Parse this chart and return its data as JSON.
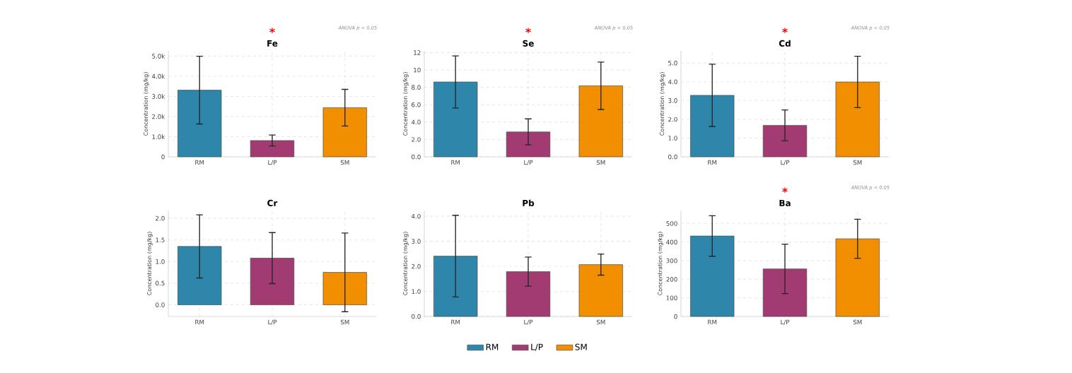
{
  "chart_data": [
    {
      "type": "bar",
      "title": "Fe",
      "ylabel": "Concentration (mg/kg)",
      "categories": [
        "RM",
        "L/P",
        "SM"
      ],
      "values": [
        3310,
        810,
        2440
      ],
      "colors": [
        "#2e86ab",
        "#a23b72",
        "#f18f01"
      ],
      "errors": [
        1680,
        270,
        910
      ],
      "ylim": [
        0,
        5260
      ],
      "yticks": [
        0,
        {
          "value": 1000,
          "label": "1.0k"
        },
        {
          "value": 2000,
          "label": "2.0k"
        },
        {
          "value": 3000,
          "label": "3.0k"
        },
        {
          "value": 4000,
          "label": "4.0k"
        },
        {
          "value": 5000,
          "label": "5.0k"
        }
      ],
      "grid": true,
      "annotations": [
        "*",
        "ANOVA p < 0.05"
      ]
    },
    {
      "type": "bar",
      "title": "Se",
      "ylabel": "Concentration (mg/kg)",
      "categories": [
        "RM",
        "L/P",
        "SM"
      ],
      "values": [
        8.62,
        2.87,
        8.18
      ],
      "colors": [
        "#2e86ab",
        "#a23b72",
        "#f18f01"
      ],
      "errors": [
        3.0,
        1.5,
        2.73
      ],
      "ylim": [
        0,
        12.2
      ],
      "yticks": [
        {
          "value": 0,
          "label": "0.0"
        },
        {
          "value": 2,
          "label": "2.0"
        },
        {
          "value": 4,
          "label": "4.0"
        },
        {
          "value": 6,
          "label": "6.0"
        },
        {
          "value": 8,
          "label": "8.0"
        },
        10,
        12
      ],
      "grid": true,
      "annotations": [
        "*",
        "ANOVA p < 0.05"
      ]
    },
    {
      "type": "bar",
      "title": "Cd",
      "ylabel": "Concentration (mg/kg)",
      "categories": [
        "RM",
        "L/P",
        "SM"
      ],
      "values": [
        3.28,
        1.68,
        3.99
      ],
      "colors": [
        "#2e86ab",
        "#a23b72",
        "#f18f01"
      ],
      "errors": [
        1.66,
        0.82,
        1.37
      ],
      "ylim": [
        0,
        5.65
      ],
      "yticks": [
        {
          "value": 0,
          "label": "0.0"
        },
        {
          "value": 1,
          "label": "1.0"
        },
        {
          "value": 2,
          "label": "2.0"
        },
        {
          "value": 3,
          "label": "3.0"
        },
        {
          "value": 4,
          "label": "4.0"
        },
        {
          "value": 5,
          "label": "5.0"
        }
      ],
      "grid": true,
      "annotations": [
        "*",
        "ANOVA p < 0.05"
      ]
    },
    {
      "type": "bar",
      "title": "Cr",
      "ylabel": "Concentration (mg/kg)",
      "categories": [
        "RM",
        "L/P",
        "SM"
      ],
      "values": [
        1.35,
        1.08,
        0.75
      ],
      "colors": [
        "#2e86ab",
        "#a23b72",
        "#f18f01"
      ],
      "errors": [
        0.73,
        0.59,
        0.91
      ],
      "ylim": [
        -0.27,
        2.18
      ],
      "yticks": [
        {
          "value": 0,
          "label": "0.0"
        },
        0.5,
        {
          "value": 1,
          "label": "1.0"
        },
        1.5,
        {
          "value": 2,
          "label": "2.0"
        }
      ],
      "grid": true
    },
    {
      "type": "bar",
      "title": "Pb",
      "ylabel": "Concentration (mg/kg)",
      "categories": [
        "RM",
        "L/P",
        "SM"
      ],
      "series": [
        {
          "name": "RM",
          "color": "#2e86ab",
          "values": [
            2.41,
            null,
            null
          ],
          "errors": [
            1.63,
            null,
            null
          ]
        },
        {
          "name": "L/P",
          "color": "#a23b72",
          "values": [
            null,
            1.79,
            null
          ],
          "errors": [
            null,
            0.58,
            null
          ]
        },
        {
          "name": "SM",
          "color": "#f18f01",
          "values": [
            null,
            null,
            2.07
          ],
          "errors": [
            null,
            null,
            0.42
          ]
        }
      ],
      "ylim": [
        0,
        4.23
      ],
      "yticks": [
        {
          "value": 0,
          "label": "0.0"
        },
        {
          "value": 1,
          "label": "1.0"
        },
        {
          "value": 2,
          "label": "2.0"
        },
        {
          "value": 3,
          "label": "3.0"
        },
        {
          "value": 4,
          "label": "4.0"
        }
      ],
      "grid": true,
      "legend": "bottom"
    },
    {
      "type": "bar",
      "title": "Ba",
      "ylabel": "Concentration (mg/kg)",
      "categories": [
        "RM",
        "L/P",
        "SM"
      ],
      "values": [
        433,
        256,
        418
      ],
      "colors": [
        "#2e86ab",
        "#a23b72",
        "#f18f01"
      ],
      "errors": [
        109,
        133,
        105
      ],
      "ylim": [
        0,
        570
      ],
      "yticks": [
        0,
        100,
        200,
        300,
        400,
        500
      ],
      "grid": true,
      "annotations": [
        "*",
        "ANOVA p < 0.05"
      ]
    }
  ]
}
